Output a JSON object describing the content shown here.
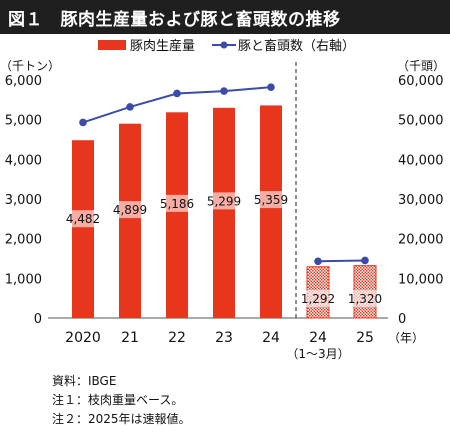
{
  "header": {
    "title": "図１　豚肉生産量および豚と畜頭数の推移"
  },
  "chart_data": {
    "type": "bar",
    "title": "図１　豚肉生産量および豚と畜頭数の推移",
    "left_unit": "（千トン）",
    "right_unit": "（千頭）",
    "x_unit": "（年）",
    "categories": [
      "2020",
      "21",
      "22",
      "23",
      "24",
      "24",
      "25"
    ],
    "category_sublabels": [
      "",
      "",
      "",
      "",
      "",
      "（1～3月）",
      ""
    ],
    "series": [
      {
        "name": "豚肉生産量",
        "type": "bar",
        "axis": "left",
        "values": [
          4482,
          4899,
          5186,
          5299,
          5359,
          1292,
          1320
        ],
        "labels": [
          "4,482",
          "4,899",
          "5,186",
          "5,299",
          "5,359",
          "1,292",
          "1,320"
        ],
        "color": "#e8361c"
      },
      {
        "name": "豚と畜頭数（右軸）",
        "type": "line",
        "axis": "right",
        "values": [
          49300,
          53200,
          56600,
          57200,
          58200,
          14300,
          14500
        ],
        "color": "#3b4ba8"
      }
    ],
    "left_ticks": [
      "0",
      "1,000",
      "2,000",
      "3,000",
      "4,000",
      "5,000",
      "6,000"
    ],
    "right_ticks": [
      "0",
      "10,000",
      "20,000",
      "30,000",
      "40,000",
      "50,000",
      "60,000"
    ],
    "ylim_left": [
      0,
      6000
    ],
    "ylim_right": [
      0,
      60000
    ],
    "legend_position": "top",
    "grid": false
  },
  "notes": [
    "資料：IBGE",
    "注１：枝肉重量ベース。",
    "注２：2025年は速報値。"
  ]
}
